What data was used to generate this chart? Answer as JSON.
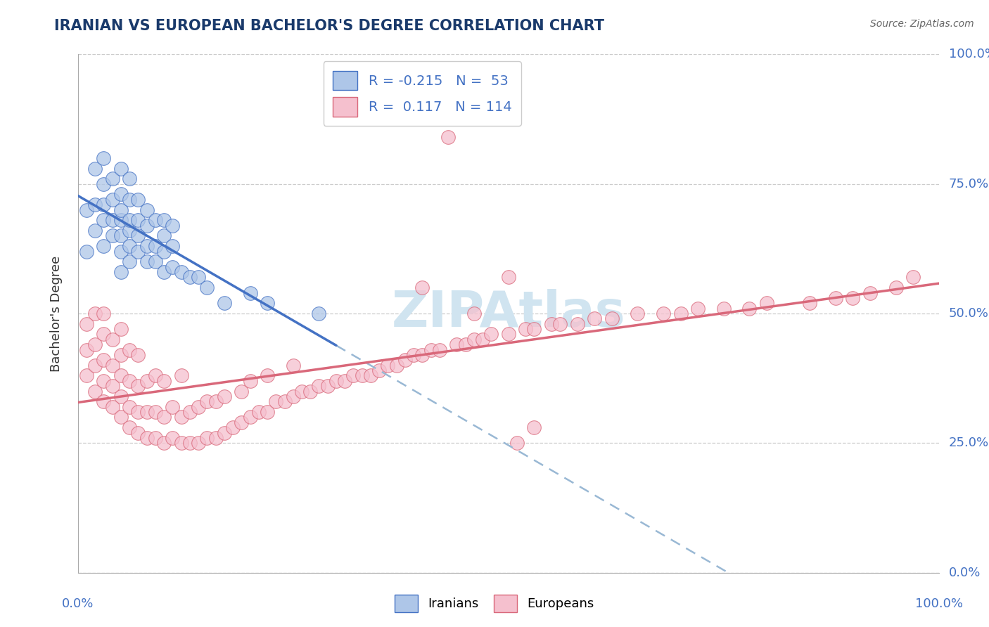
{
  "title": "IRANIAN VS EUROPEAN BACHELOR'S DEGREE CORRELATION CHART",
  "source_text": "Source: ZipAtlas.com",
  "ylabel": "Bachelor's Degree",
  "ytick_labels": [
    "0.0%",
    "25.0%",
    "50.0%",
    "75.0%",
    "100.0%"
  ],
  "ytick_values": [
    0,
    25,
    50,
    75,
    100
  ],
  "xtick_labels": [
    "0.0%",
    "100.0%"
  ],
  "xlim": [
    0,
    100
  ],
  "ylim": [
    0,
    100
  ],
  "iranian_R": -0.215,
  "iranian_N": 53,
  "european_R": 0.117,
  "european_N": 114,
  "scatter_iranian_color": "#aec6e8",
  "scatter_european_color": "#f5c0ce",
  "line_iranian_color": "#4472c4",
  "line_european_color": "#d9687a",
  "dashed_line_color": "#99b8d4",
  "watermark_color": "#d0e4f0",
  "iranians_x": [
    1,
    1,
    2,
    2,
    2,
    3,
    3,
    3,
    3,
    3,
    4,
    4,
    4,
    4,
    5,
    5,
    5,
    5,
    5,
    5,
    5,
    6,
    6,
    6,
    6,
    6,
    6,
    7,
    7,
    7,
    7,
    8,
    8,
    8,
    8,
    9,
    9,
    9,
    10,
    10,
    10,
    10,
    11,
    11,
    11,
    12,
    13,
    14,
    15,
    17,
    20,
    22,
    28
  ],
  "iranians_y": [
    62,
    70,
    66,
    71,
    78,
    63,
    68,
    71,
    75,
    80,
    65,
    68,
    72,
    76,
    58,
    62,
    65,
    68,
    70,
    73,
    78,
    60,
    63,
    66,
    68,
    72,
    76,
    62,
    65,
    68,
    72,
    60,
    63,
    67,
    70,
    60,
    63,
    68,
    58,
    62,
    65,
    68,
    59,
    63,
    67,
    58,
    57,
    57,
    55,
    52,
    54,
    52,
    50
  ],
  "europeans_x": [
    1,
    1,
    1,
    2,
    2,
    2,
    2,
    3,
    3,
    3,
    3,
    3,
    4,
    4,
    4,
    4,
    5,
    5,
    5,
    5,
    5,
    6,
    6,
    6,
    6,
    7,
    7,
    7,
    7,
    8,
    8,
    8,
    9,
    9,
    9,
    10,
    10,
    10,
    11,
    11,
    12,
    12,
    12,
    13,
    13,
    14,
    14,
    15,
    15,
    16,
    16,
    17,
    17,
    18,
    19,
    19,
    20,
    20,
    21,
    22,
    22,
    23,
    24,
    25,
    25,
    26,
    27,
    28,
    29,
    30,
    31,
    32,
    33,
    34,
    35,
    36,
    37,
    38,
    39,
    40,
    41,
    42,
    44,
    45,
    46,
    47,
    48,
    50,
    52,
    53,
    55,
    56,
    58,
    60,
    62,
    65,
    68,
    70,
    72,
    75,
    78,
    80,
    85,
    88,
    90,
    92,
    95,
    97,
    40,
    50,
    43,
    46,
    51,
    53
  ],
  "europeans_y": [
    38,
    43,
    48,
    35,
    40,
    44,
    50,
    33,
    37,
    41,
    46,
    50,
    32,
    36,
    40,
    45,
    30,
    34,
    38,
    42,
    47,
    28,
    32,
    37,
    43,
    27,
    31,
    36,
    42,
    26,
    31,
    37,
    26,
    31,
    38,
    25,
    30,
    37,
    26,
    32,
    25,
    30,
    38,
    25,
    31,
    25,
    32,
    26,
    33,
    26,
    33,
    27,
    34,
    28,
    29,
    35,
    30,
    37,
    31,
    31,
    38,
    33,
    33,
    34,
    40,
    35,
    35,
    36,
    36,
    37,
    37,
    38,
    38,
    38,
    39,
    40,
    40,
    41,
    42,
    42,
    43,
    43,
    44,
    44,
    45,
    45,
    46,
    46,
    47,
    47,
    48,
    48,
    48,
    49,
    49,
    50,
    50,
    50,
    51,
    51,
    51,
    52,
    52,
    53,
    53,
    54,
    55,
    57,
    55,
    57,
    84,
    50,
    25,
    28
  ]
}
